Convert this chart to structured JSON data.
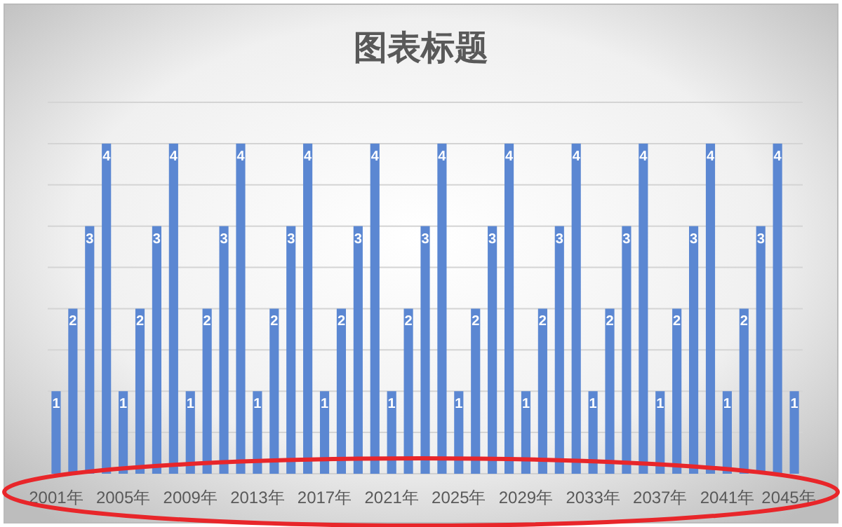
{
  "chart_data": {
    "type": "bar",
    "title": "图表标题",
    "categories": [
      "2001年",
      null,
      null,
      null,
      "2005年",
      null,
      null,
      null,
      "2009年",
      null,
      null,
      null,
      "2013年",
      null,
      null,
      null,
      "2017年",
      null,
      null,
      null,
      "2021年",
      null,
      null,
      null,
      "2025年",
      null,
      null,
      null,
      "2029年",
      null,
      null,
      null,
      "2033年",
      null,
      null,
      null,
      "2037年",
      null,
      null,
      null,
      "2041年",
      null,
      null,
      null,
      "2045年"
    ],
    "values": [
      1,
      2,
      3,
      4,
      1,
      2,
      3,
      4,
      1,
      2,
      3,
      4,
      1,
      2,
      3,
      4,
      1,
      2,
      3,
      4,
      1,
      2,
      3,
      4,
      1,
      2,
      3,
      4,
      1,
      2,
      3,
      4,
      1,
      2,
      3,
      4,
      1,
      2,
      3,
      4,
      1,
      2,
      3,
      4,
      1
    ],
    "color": "#5b87d2",
    "ylim": [
      0,
      4.5
    ],
    "grid": "y",
    "data_labels": true,
    "tick_labels": "x"
  }
}
